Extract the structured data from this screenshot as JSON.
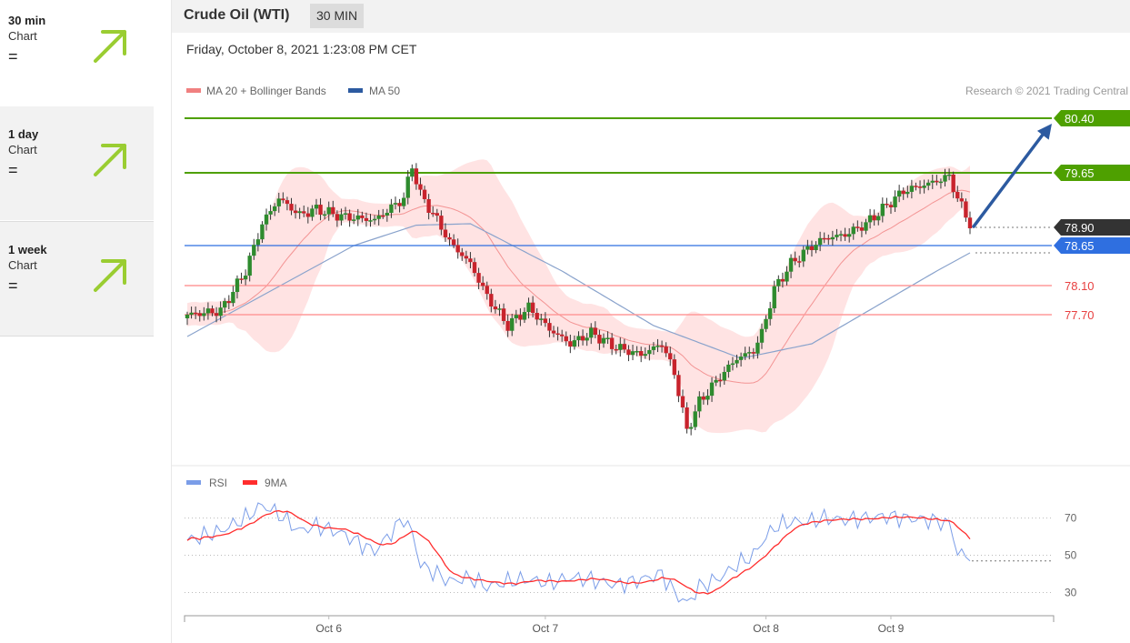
{
  "sidebar": {
    "items": [
      {
        "period": "30 min",
        "label": "Chart",
        "status": "="
      },
      {
        "period": "1 day",
        "label": "Chart",
        "status": "="
      },
      {
        "period": "1 week",
        "label": "Chart",
        "status": "="
      }
    ],
    "arrow_color": "#9acd32"
  },
  "header": {
    "title": "Crude Oil (WTI)",
    "timeframe": "30 MIN",
    "date": "Friday, October 8, 2021 1:23:08 PM CET"
  },
  "chart_data": [
    {
      "type": "candlestick",
      "legend": [
        {
          "name": "MA 20 + Bollinger Bands",
          "color": "#f08080"
        },
        {
          "name": "MA 50",
          "color": "#2c5aa0"
        }
      ],
      "credit": "Research © 2021 Trading Central",
      "ylim": [
        75.8,
        80.65
      ],
      "levels": [
        {
          "value": 80.4,
          "label": "80.40",
          "color": "#4ea000",
          "label_bg": "#4ea000",
          "kind": "target"
        },
        {
          "value": 79.65,
          "label": "79.65",
          "color": "#4ea000",
          "label_bg": "#4ea000",
          "kind": "resistance"
        },
        {
          "value": 78.9,
          "label": "78.90",
          "color": "#555555",
          "label_bg": "#333333",
          "kind": "last-price"
        },
        {
          "value": 78.65,
          "label": "78.65",
          "color": "#2f6fe0",
          "label_bg": "#2f6fe0",
          "kind": "pivot"
        },
        {
          "value": 78.1,
          "label": "78.10",
          "color": "#ff9a9a",
          "label_bg": "",
          "kind": "support"
        },
        {
          "value": 77.7,
          "label": "77.70",
          "color": "#ff9a9a",
          "label_bg": "",
          "kind": "support"
        }
      ],
      "anchors": [
        [
          0,
          77.7
        ],
        [
          8,
          77.75
        ],
        [
          14,
          78.3
        ],
        [
          18,
          78.95
        ],
        [
          22,
          79.3
        ],
        [
          27,
          79.07
        ],
        [
          31,
          79.15
        ],
        [
          37,
          79.05
        ],
        [
          45,
          79.0
        ],
        [
          52,
          79.3
        ],
        [
          54,
          79.75
        ],
        [
          56,
          79.35
        ],
        [
          60,
          79.0
        ],
        [
          63,
          78.7
        ],
        [
          68,
          78.4
        ],
        [
          72,
          77.95
        ],
        [
          77,
          77.55
        ],
        [
          82,
          77.8
        ],
        [
          87,
          77.5
        ],
        [
          92,
          77.3
        ],
        [
          97,
          77.45
        ],
        [
          103,
          77.25
        ],
        [
          109,
          77.15
        ],
        [
          114,
          77.3
        ],
        [
          117,
          76.9
        ],
        [
          120,
          76.1
        ],
        [
          123,
          76.5
        ],
        [
          128,
          76.85
        ],
        [
          132,
          77.1
        ],
        [
          136,
          77.2
        ],
        [
          138,
          77.45
        ],
        [
          141,
          78.05
        ],
        [
          145,
          78.4
        ],
        [
          149,
          78.6
        ],
        [
          153,
          78.75
        ],
        [
          158,
          78.8
        ],
        [
          163,
          78.95
        ],
        [
          168,
          79.2
        ],
        [
          172,
          79.4
        ],
        [
          178,
          79.5
        ],
        [
          183,
          79.6
        ],
        [
          185,
          79.3
        ],
        [
          188,
          78.95
        ]
      ],
      "ma50_anchors": [
        [
          0,
          77.4
        ],
        [
          40,
          78.65
        ],
        [
          55,
          78.93
        ],
        [
          68,
          78.95
        ],
        [
          90,
          78.3
        ],
        [
          112,
          77.55
        ],
        [
          133,
          77.1
        ],
        [
          150,
          77.3
        ],
        [
          165,
          77.8
        ],
        [
          180,
          78.3
        ],
        [
          188,
          78.55
        ]
      ],
      "x_ticks": [
        {
          "pos": 34,
          "label": "Oct 6"
        },
        {
          "pos": 86,
          "label": "Oct 7"
        },
        {
          "pos": 139,
          "label": "Oct 8"
        },
        {
          "pos": 169,
          "label": "Oct 9"
        }
      ]
    },
    {
      "type": "line",
      "legend": [
        {
          "name": "RSI",
          "color": "#7b9de8"
        },
        {
          "name": "9MA",
          "color": "#ff2d2d"
        }
      ],
      "ylim": [
        20,
        82
      ],
      "y_ticks": [
        70,
        50,
        30
      ],
      "last_value": 47,
      "rsi_anchors": [
        [
          0,
          58
        ],
        [
          8,
          63
        ],
        [
          14,
          70
        ],
        [
          18,
          77
        ],
        [
          22,
          72
        ],
        [
          27,
          63
        ],
        [
          31,
          66
        ],
        [
          37,
          62
        ],
        [
          45,
          52
        ],
        [
          52,
          70
        ],
        [
          54,
          62
        ],
        [
          56,
          45
        ],
        [
          60,
          40
        ],
        [
          63,
          36
        ],
        [
          68,
          38
        ],
        [
          72,
          33
        ],
        [
          77,
          36
        ],
        [
          82,
          37
        ],
        [
          87,
          35
        ],
        [
          92,
          38
        ],
        [
          97,
          37
        ],
        [
          103,
          34
        ],
        [
          109,
          37
        ],
        [
          114,
          40
        ],
        [
          117,
          30
        ],
        [
          120,
          24
        ],
        [
          123,
          33
        ],
        [
          128,
          38
        ],
        [
          132,
          45
        ],
        [
          136,
          50
        ],
        [
          138,
          57
        ],
        [
          141,
          65
        ],
        [
          145,
          68
        ],
        [
          149,
          68
        ],
        [
          153,
          70
        ],
        [
          158,
          69
        ],
        [
          163,
          70
        ],
        [
          168,
          71
        ],
        [
          172,
          70
        ],
        [
          178,
          69
        ],
        [
          183,
          67
        ],
        [
          185,
          52
        ],
        [
          188,
          47
        ]
      ]
    }
  ]
}
